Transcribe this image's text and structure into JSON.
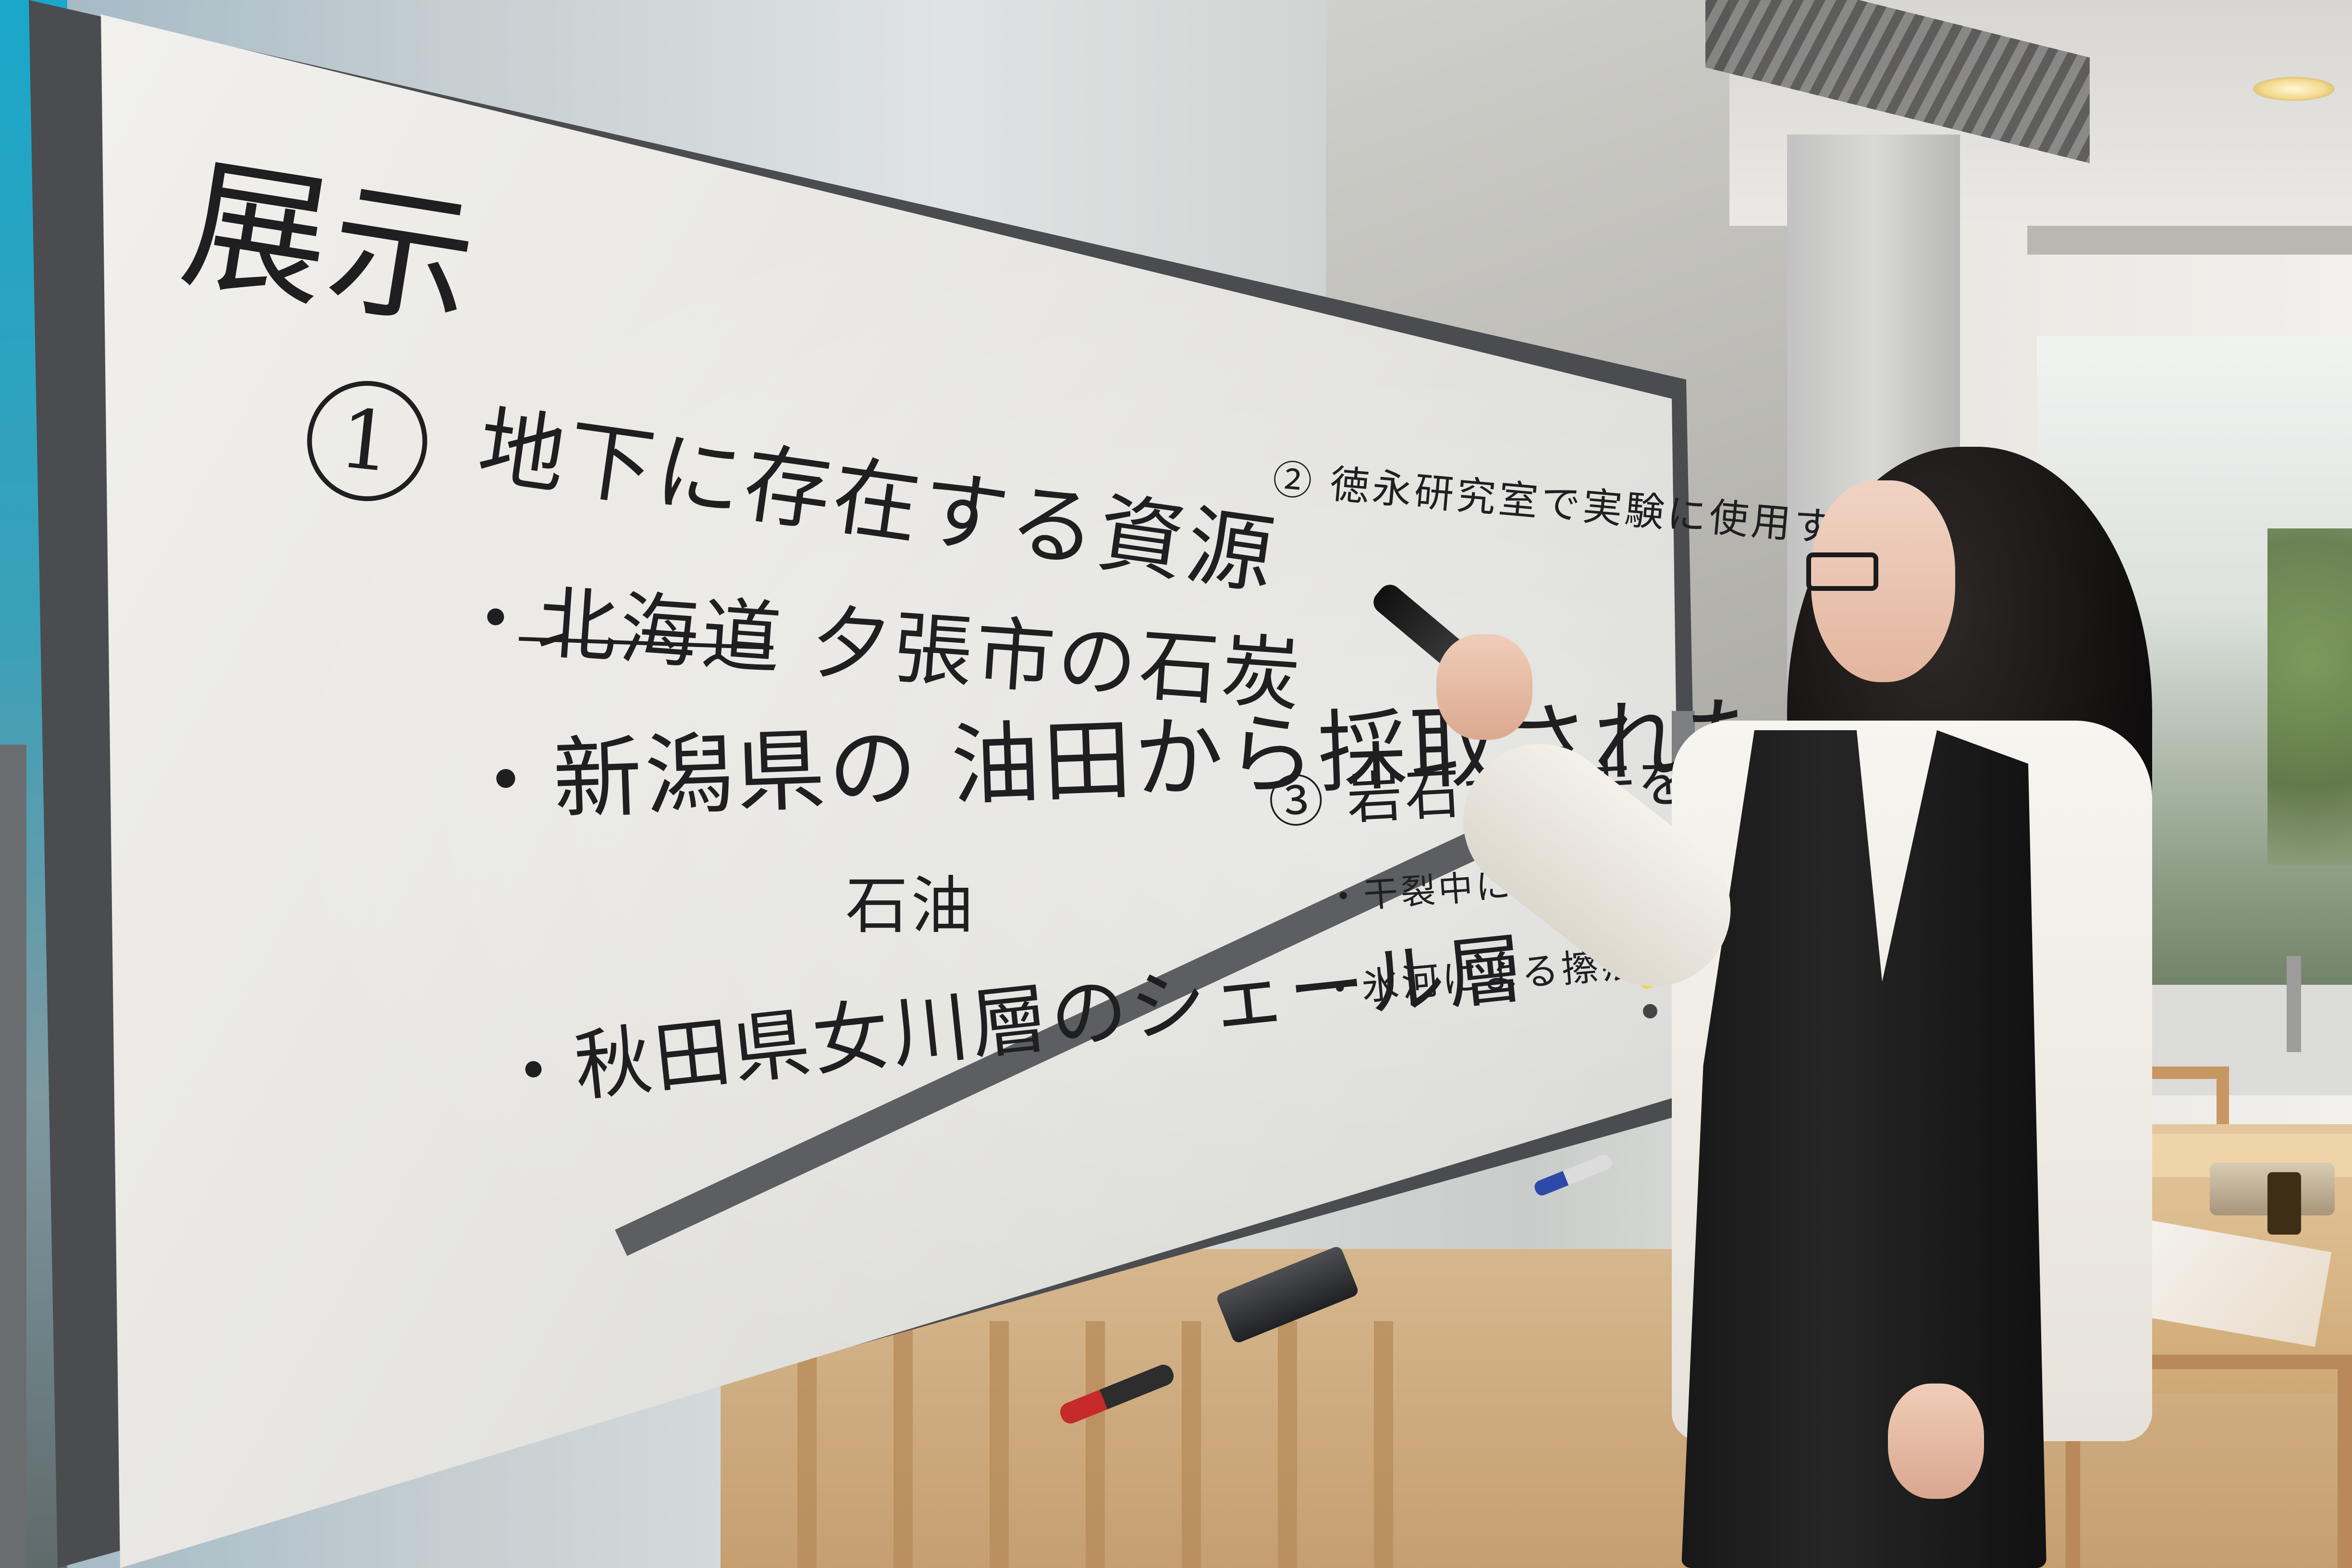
{
  "whiteboard": {
    "title": "展示",
    "item_1": {
      "number": "1",
      "heading": "地下に存在する資源",
      "line_1": "・北海道 夕張市の石炭",
      "line_2": "・新潟県の 油田から採取された",
      "line_2b": "石油",
      "line_3": "・秋田県女川層のシェール層"
    },
    "item_2": {
      "heading": "② 徳永研究室で実験に使用する試料"
    },
    "item_3": {
      "heading": "③ 岩石が過去を",
      "line_1": "・干裂中に析出し",
      "line_2": "・氷河による擦痕"
    }
  },
  "colors": {
    "marker_ink": "#1f1f22",
    "board": "#e8e7e3",
    "frame": "#4a4c50"
  }
}
